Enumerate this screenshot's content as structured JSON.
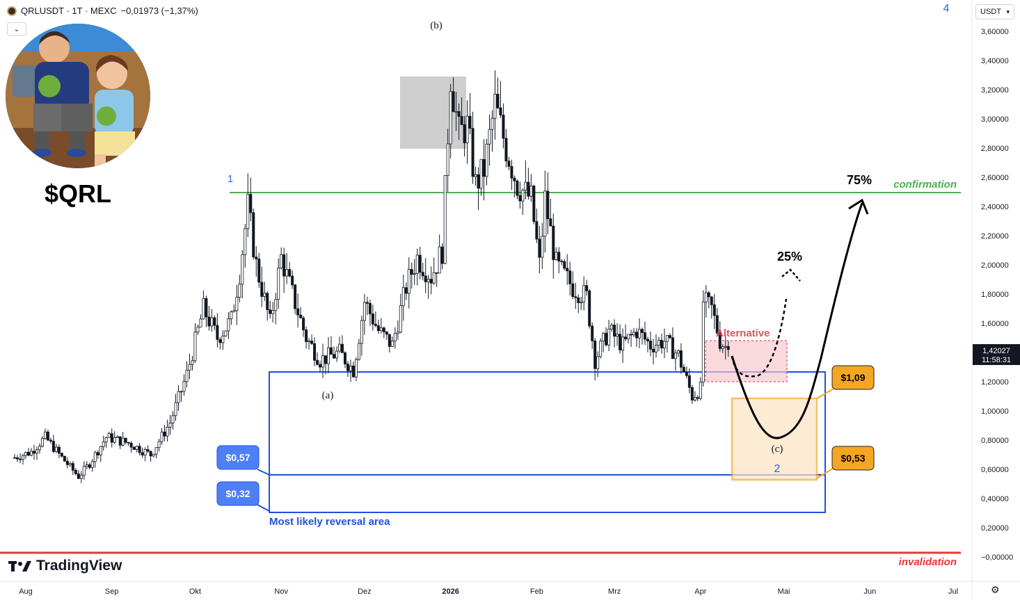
{
  "header": {
    "symbol": "QRLUSDT · 1T · MEXC",
    "change": "−0,01973 (−1,37%)",
    "collapse_icon": "chevron-down-icon"
  },
  "currency_button": {
    "label": "USDT",
    "icon": "chevron-down-icon"
  },
  "brand": {
    "ticker": "$QRL",
    "logo": "TradingView"
  },
  "price_tag": {
    "price": "1,42027",
    "countdown": "11:58:31"
  },
  "colors": {
    "up": "#131722",
    "down": "#131722",
    "confirmation": "#4caf50",
    "invalidation": "#e53935",
    "zone": "#1e50e0",
    "target_box": "#f5a623",
    "alternative": "#e05260",
    "label_wave": "#3b5fd9"
  },
  "chart_data": {
    "type": "candlestick",
    "title": "",
    "x_ticks": [
      "Aug",
      "Sep",
      "Okt",
      "Nov",
      "Dez",
      "2026",
      "Feb",
      "Mrz",
      "Apr",
      "Mai",
      "Jun",
      "Jul"
    ],
    "y_ticks": [
      "3,60000",
      "3,40000",
      "3,20000",
      "3,00000",
      "2,80000",
      "2,60000",
      "2,40000",
      "2,20000",
      "2,00000",
      "1,80000",
      "1,60000",
      "1,40000",
      "1,20000",
      "1,00000",
      "0,80000",
      "0,60000",
      "0,40000",
      "0,20000",
      "−0,00000"
    ],
    "ylim": [
      -0.07,
      3.78
    ],
    "price_path": [
      [
        "2025-07-28",
        0.68
      ],
      [
        "2025-08-03",
        0.72
      ],
      [
        "2025-08-08",
        0.82
      ],
      [
        "2025-08-14",
        0.68
      ],
      [
        "2025-08-20",
        0.55
      ],
      [
        "2025-08-24",
        0.64
      ],
      [
        "2025-08-30",
        0.82
      ],
      [
        "2025-09-07",
        0.78
      ],
      [
        "2025-09-15",
        0.7
      ],
      [
        "2025-09-22",
        0.92
      ],
      [
        "2025-09-28",
        1.25
      ],
      [
        "2025-10-04",
        1.7
      ],
      [
        "2025-10-09",
        1.5
      ],
      [
        "2025-10-14",
        1.62
      ],
      [
        "2025-10-17",
        1.95
      ],
      [
        "2025-10-20",
        2.4
      ],
      [
        "2025-10-23",
        2.0
      ],
      [
        "2025-10-28",
        1.6
      ],
      [
        "2025-11-01",
        2.05
      ],
      [
        "2025-11-05",
        1.8
      ],
      [
        "2025-11-10",
        1.5
      ],
      [
        "2025-11-15",
        1.35
      ],
      [
        "2025-11-22",
        1.4
      ],
      [
        "2025-11-27",
        1.28
      ],
      [
        "2025-12-01",
        1.75
      ],
      [
        "2025-12-06",
        1.55
      ],
      [
        "2025-12-11",
        1.45
      ],
      [
        "2025-12-16",
        1.85
      ],
      [
        "2025-12-20",
        2.05
      ],
      [
        "2025-12-25",
        1.92
      ],
      [
        "2025-12-29",
        2.1
      ],
      [
        "2026-01-01",
        3.3
      ],
      [
        "2026-01-04",
        2.9
      ],
      [
        "2026-01-07",
        2.95
      ],
      [
        "2026-01-10",
        2.55
      ],
      [
        "2026-01-13",
        2.65
      ],
      [
        "2026-01-17",
        3.1
      ],
      [
        "2026-01-21",
        2.8
      ],
      [
        "2026-01-25",
        2.55
      ],
      [
        "2026-01-30",
        2.45
      ],
      [
        "2026-02-02",
        2.0
      ],
      [
        "2026-02-04",
        2.45
      ],
      [
        "2026-02-08",
        2.0
      ],
      [
        "2026-02-14",
        1.85
      ],
      [
        "2026-02-19",
        1.78
      ],
      [
        "2026-02-22",
        1.35
      ],
      [
        "2026-02-27",
        1.55
      ],
      [
        "2026-03-04",
        1.45
      ],
      [
        "2026-03-09",
        1.55
      ],
      [
        "2026-03-14",
        1.45
      ],
      [
        "2026-03-19",
        1.48
      ],
      [
        "2026-03-24",
        1.38
      ],
      [
        "2026-03-29",
        1.1
      ],
      [
        "2026-04-01",
        1.15
      ],
      [
        "2026-04-02",
        1.75
      ],
      [
        "2026-04-05",
        1.7
      ],
      [
        "2026-04-08",
        1.48
      ],
      [
        "2026-04-11",
        1.42
      ]
    ],
    "last_price": 1.42027,
    "annotations": {
      "waves": [
        "1",
        "(a)",
        "(b)",
        "(c)",
        "2",
        "4"
      ],
      "horizontal_levels": [
        {
          "label": "confirmation",
          "value": 2.49
        },
        {
          "label": "invalidation",
          "value": 0.02
        }
      ],
      "zones": [
        {
          "label": "Most likely reversal area",
          "top": 1.28,
          "bottom": 0.32
        },
        {
          "label": "Alternative",
          "top": 1.47,
          "bottom": 1.2
        },
        {
          "label": "target box",
          "top": 1.09,
          "bottom": 0.53
        }
      ],
      "price_labels": [
        "$1,09",
        "$0,53",
        "$0,57",
        "$0,32"
      ],
      "targets": [
        "25%",
        "75%"
      ]
    }
  }
}
